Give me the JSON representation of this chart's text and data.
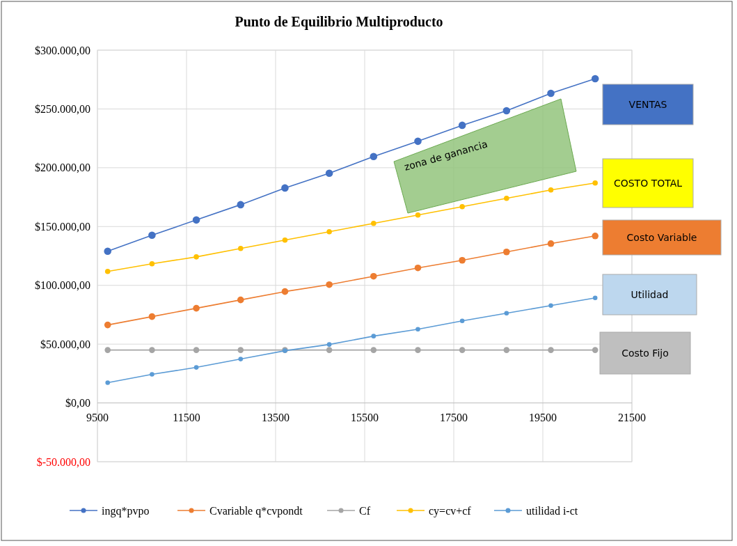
{
  "chart_data": {
    "type": "line",
    "title": "Punto de Equilibrio Multiproducto",
    "x": [
      9730,
      10725,
      11720,
      12715,
      13710,
      14705,
      15700,
      16695,
      17690,
      18685,
      19680,
      20675
    ],
    "series": [
      {
        "name": "ingq*pvpo",
        "color": "#4472c4",
        "values": [
          129000,
          142600,
          155600,
          168600,
          182800,
          195300,
          209500,
          222500,
          236100,
          248500,
          263300,
          275700
        ]
      },
      {
        "name": "Cvariable q*cvpondt",
        "color": "#ed7d31",
        "values": [
          66300,
          73400,
          80500,
          87600,
          94700,
          100600,
          107700,
          114800,
          121300,
          128400,
          135500,
          142000
        ]
      },
      {
        "name": "Cf",
        "color": "#a5a5a5",
        "values": [
          45000,
          45000,
          45000,
          45000,
          45000,
          45000,
          45000,
          45000,
          45000,
          45000,
          45000,
          45000
        ]
      },
      {
        "name": "cy=cv+cf",
        "color": "#ffc000",
        "values": [
          111800,
          118300,
          124200,
          131400,
          138500,
          145600,
          152700,
          159800,
          166900,
          174000,
          181100,
          187000
        ]
      },
      {
        "name": "utilidad i-ct",
        "color": "#5b9bd5",
        "values": [
          17200,
          24300,
          30200,
          37300,
          44400,
          49700,
          56800,
          62700,
          69800,
          76300,
          82800,
          89300
        ]
      }
    ],
    "xlim": [
      9500,
      21500
    ],
    "xticks": [
      9500,
      11500,
      13500,
      15500,
      17500,
      19500,
      21500
    ],
    "ylim": [
      -50000,
      300000
    ],
    "yticks": [
      {
        "value": -50000,
        "label": "$-50.000,00"
      },
      {
        "value": 0,
        "label": "$0,00"
      },
      {
        "value": 50000,
        "label": "$50.000,00"
      },
      {
        "value": 100000,
        "label": "$100.000,00"
      },
      {
        "value": 150000,
        "label": "$150.000,00"
      },
      {
        "value": 200000,
        "label": "$200.000,00"
      },
      {
        "value": 250000,
        "label": "$250.000,00"
      },
      {
        "value": 300000,
        "label": "$300.000,00"
      }
    ],
    "grid": true,
    "legend": "bottom",
    "marker": "circle",
    "line_style": "solid",
    "annotations": [
      "zona de ganancia",
      "VENTAS",
      "COSTO TOTAL",
      "Costo Variable",
      "Utilidad",
      "Costo Fijo"
    ]
  }
}
